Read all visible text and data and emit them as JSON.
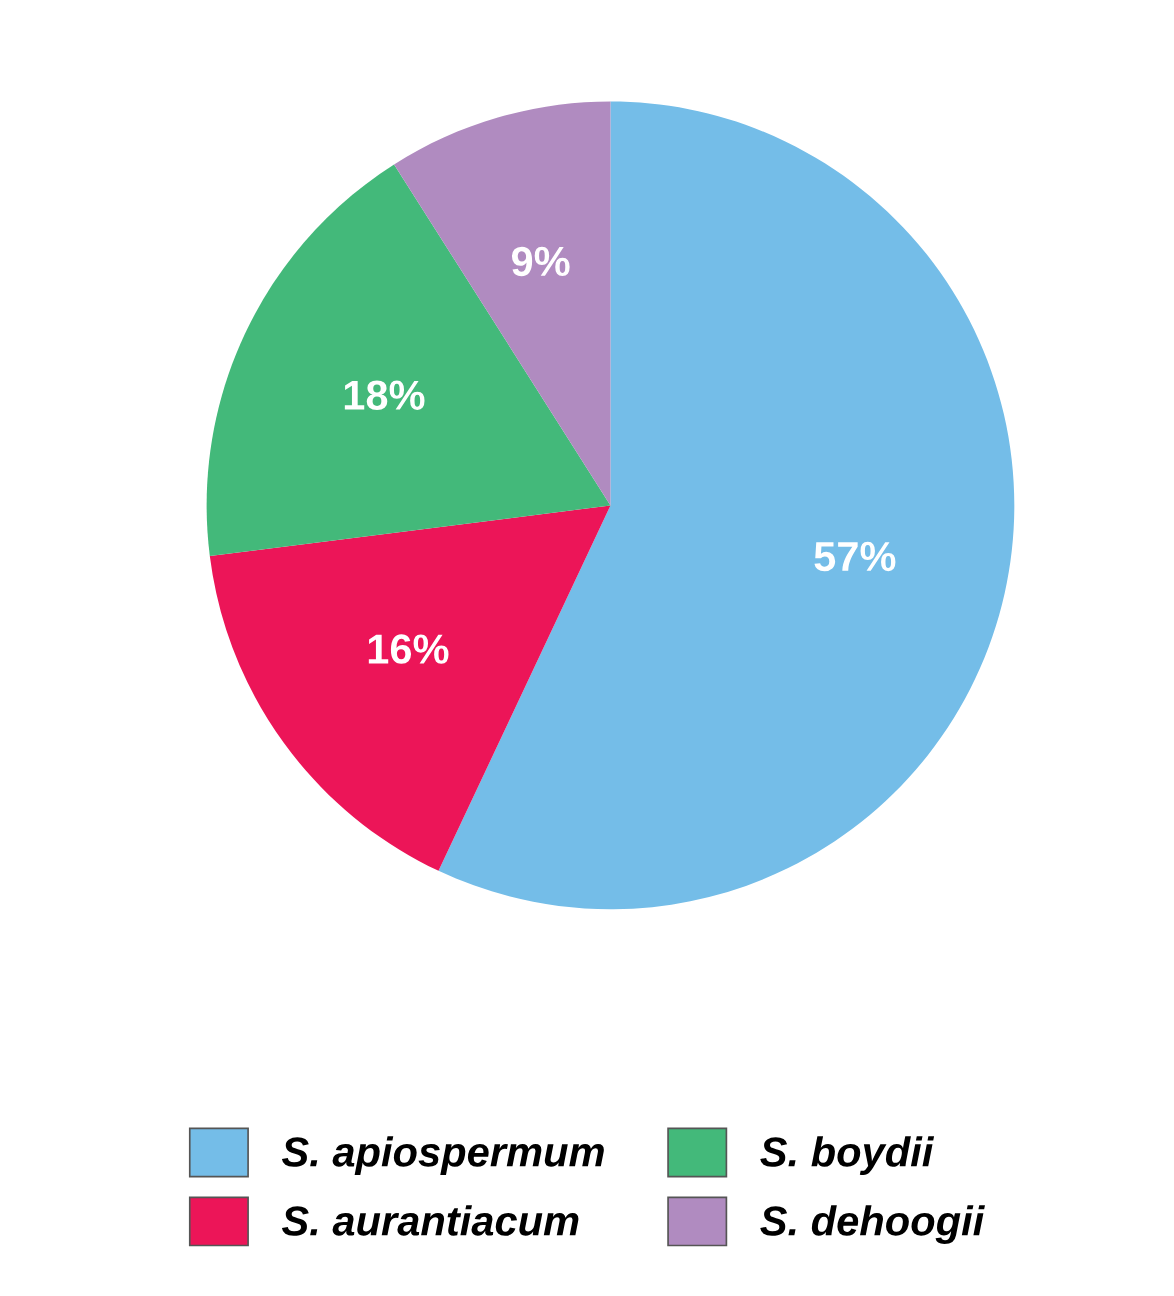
{
  "chart_data": {
    "type": "pie",
    "categories": [
      "S. apiospermum",
      "S. aurantiacum",
      "S. boydii",
      "S. dehoogii"
    ],
    "values": [
      57,
      16,
      18,
      9
    ],
    "colors": [
      "#74bde8",
      "#ec1558",
      "#43b97a",
      "#b08bc0"
    ],
    "value_labels": [
      "57%",
      "16%",
      "18%",
      "9%"
    ],
    "legend": "bottom"
  }
}
